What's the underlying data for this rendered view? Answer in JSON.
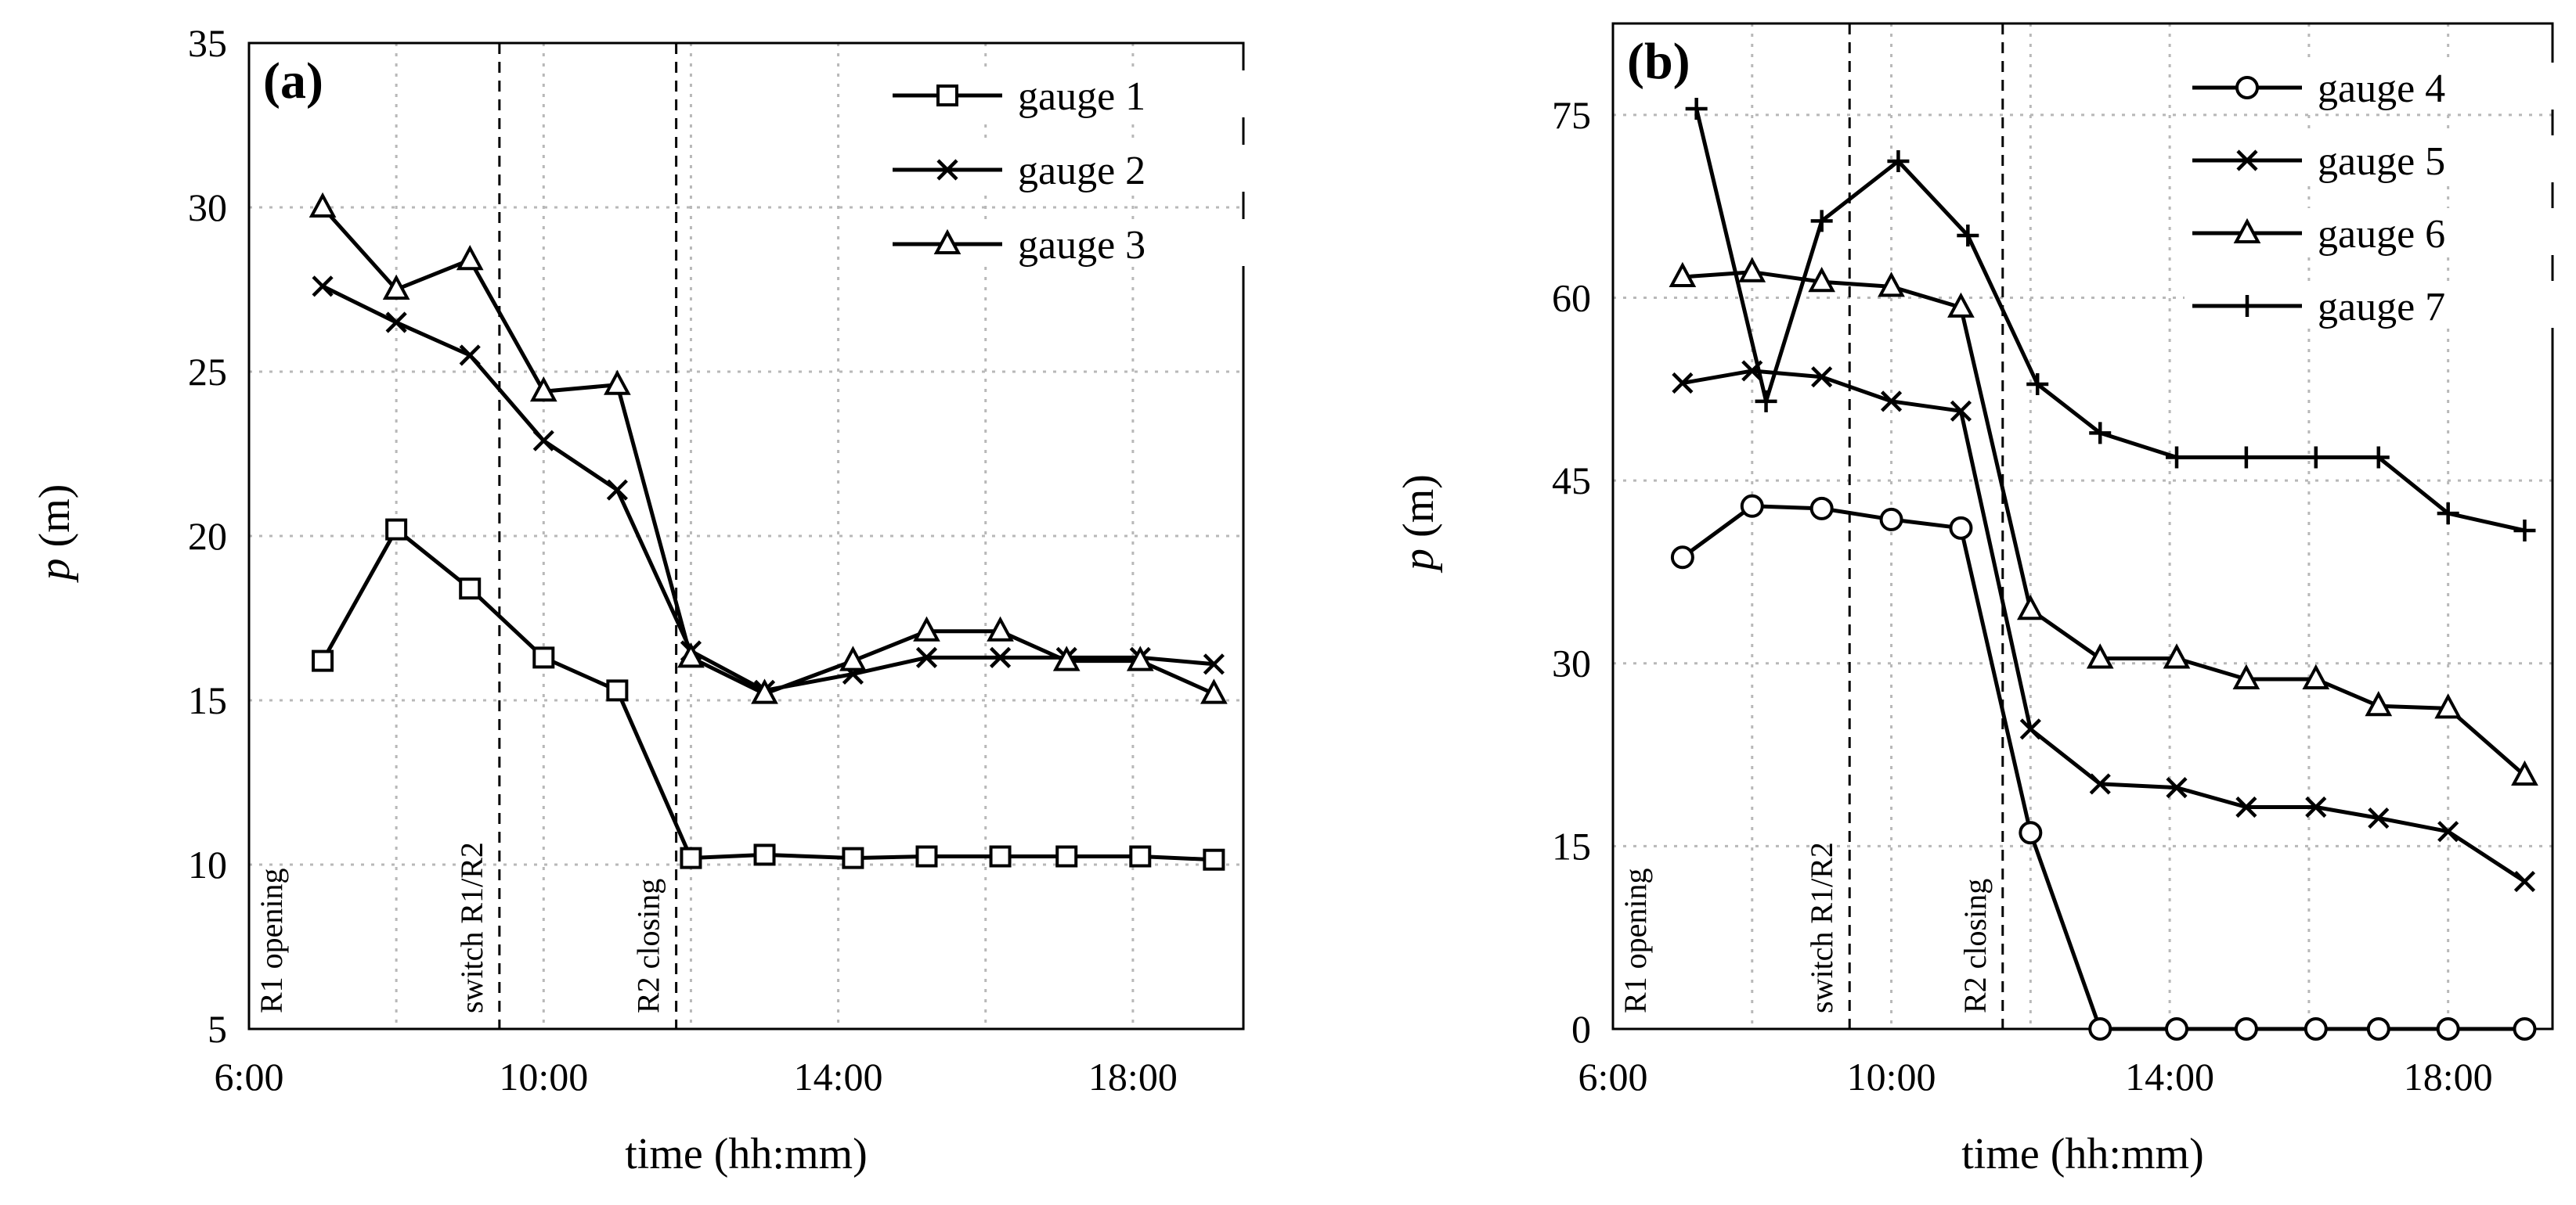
{
  "chart_data": [
    {
      "type": "line",
      "panel_label": "(a)",
      "xlabel": "time (hh:mm)",
      "ylabel": "p",
      "ylabel_unit": "(m)",
      "x_unit": "hours",
      "xlim": [
        6,
        19.5
      ],
      "ylim": [
        5,
        35
      ],
      "xticks": [
        6,
        10,
        14,
        18
      ],
      "xtick_labels": [
        "6:00",
        "10:00",
        "14:00",
        "18:00"
      ],
      "yticks": [
        5,
        10,
        15,
        20,
        25,
        30,
        35
      ],
      "ytick_labels": [
        "5",
        "10",
        "15",
        "20",
        "25",
        "30",
        "35"
      ],
      "grid": true,
      "legend_position": "top-right",
      "events": [
        {
          "label": "R1 opening",
          "x": 6.0,
          "line": false
        },
        {
          "label": "switch R1/R2",
          "x": 9.4,
          "line": true
        },
        {
          "label": "R2 closing",
          "x": 11.8,
          "line": true
        }
      ],
      "series": [
        {
          "name": "gauge 1",
          "marker": "square",
          "x": [
            7,
            8,
            9,
            10,
            11,
            12,
            13,
            14.2,
            15.2,
            16.2,
            17.1,
            18.1,
            19.1
          ],
          "values": [
            16.2,
            20.2,
            18.4,
            16.3,
            15.3,
            10.2,
            10.3,
            10.2,
            10.25,
            10.25,
            10.25,
            10.25,
            10.15
          ]
        },
        {
          "name": "gauge 2",
          "marker": "x",
          "x": [
            7,
            8,
            9,
            10,
            11,
            12,
            13,
            14.2,
            15.2,
            16.2,
            17.1,
            18.1,
            19.1
          ],
          "values": [
            27.6,
            26.5,
            25.5,
            22.9,
            21.4,
            16.5,
            15.3,
            15.8,
            16.3,
            16.3,
            16.3,
            16.3,
            16.1
          ]
        },
        {
          "name": "gauge 3",
          "marker": "triangle",
          "x": [
            7,
            8,
            9,
            10,
            11,
            12,
            13,
            14.2,
            15.2,
            16.2,
            17.1,
            18.1,
            19.1
          ],
          "values": [
            30.0,
            27.5,
            28.4,
            24.4,
            24.6,
            16.3,
            15.2,
            16.2,
            17.1,
            17.1,
            16.2,
            16.2,
            15.2
          ]
        }
      ]
    },
    {
      "type": "line",
      "panel_label": "(b)",
      "xlabel": "time (hh:mm)",
      "ylabel": "p",
      "ylabel_unit": "(m)",
      "x_unit": "hours",
      "xlim": [
        6,
        19.5
      ],
      "ylim": [
        0,
        82.5
      ],
      "xticks": [
        6,
        10,
        14,
        18
      ],
      "xtick_labels": [
        "6:00",
        "10:00",
        "14:00",
        "18:00"
      ],
      "yticks": [
        0,
        15,
        30,
        45,
        60,
        75
      ],
      "ytick_labels": [
        "0",
        "15",
        "30",
        "45",
        "60",
        "75"
      ],
      "grid": true,
      "legend_position": "top-right",
      "events": [
        {
          "label": "R1 opening",
          "x": 6.0,
          "line": false
        },
        {
          "label": "switch R1/R2",
          "x": 9.4,
          "line": true
        },
        {
          "label": "R2 closing",
          "x": 11.6,
          "line": true
        }
      ],
      "series": [
        {
          "name": "gauge 4",
          "marker": "circle",
          "x": [
            7,
            8,
            9,
            10,
            11,
            12,
            13,
            14.1,
            15.1,
            16.1,
            17,
            18,
            19.1
          ],
          "values": [
            38.7,
            42.9,
            42.7,
            41.8,
            41.1,
            16.1,
            0,
            0,
            0,
            0,
            0,
            0,
            0
          ]
        },
        {
          "name": "gauge 5",
          "marker": "x",
          "x": [
            7,
            8,
            9,
            10,
            11,
            12,
            13,
            14.1,
            15.1,
            16.1,
            17,
            18,
            19.1
          ],
          "values": [
            53.0,
            54.0,
            53.5,
            51.5,
            50.7,
            24.6,
            20.1,
            19.8,
            18.2,
            18.2,
            17.3,
            16.2,
            12.1
          ]
        },
        {
          "name": "gauge 6",
          "marker": "triangle",
          "x": [
            7,
            8,
            9,
            10,
            11,
            12,
            13,
            14.1,
            15.1,
            16.1,
            17,
            18,
            19.1
          ],
          "values": [
            61.7,
            62.1,
            61.3,
            60.9,
            59.2,
            34.4,
            30.4,
            30.4,
            28.7,
            28.7,
            26.5,
            26.3,
            20.8
          ]
        },
        {
          "name": "gauge 7",
          "marker": "plus",
          "x": [
            7.2,
            8.2,
            9,
            10.1,
            11.1,
            12.1,
            13,
            14.1,
            15.1,
            16.1,
            17,
            18,
            19.1
          ],
          "values": [
            75.5,
            51.5,
            66.3,
            71.2,
            65.1,
            52.9,
            48.9,
            46.9,
            46.9,
            46.9,
            46.9,
            42.3,
            40.9
          ]
        }
      ]
    }
  ]
}
